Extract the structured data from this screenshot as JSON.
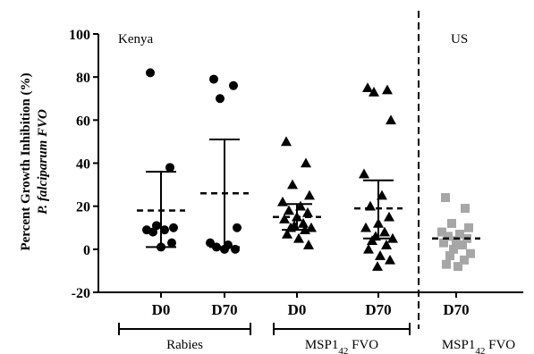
{
  "chart_data": {
    "type": "scatter",
    "ylabel_line1": "Percent Growth Inhibition (%)",
    "ylabel_line2": "P. falciparum  FVO",
    "ylim": [
      -20,
      100
    ],
    "yticks": [
      "100",
      "80",
      "60",
      "40",
      "20",
      "0",
      "-20"
    ],
    "regions": {
      "left": "Kenya",
      "right": "US"
    },
    "cohorts": [
      {
        "label": "Rabies"
      },
      {
        "label_main": "MSP1",
        "label_sub": "42",
        "label_tail": " FVO"
      },
      {
        "label_main": "MSP1",
        "label_sub": "42",
        "label_tail": " FVO"
      }
    ],
    "groups": [
      {
        "label": "D0",
        "cohort": 0,
        "region": "Kenya",
        "marker": "circle",
        "color": "#000000",
        "mean": 18,
        "sd_low": 1,
        "sd_high": 36,
        "points": [
          82,
          38,
          11,
          10,
          9,
          9,
          8,
          3,
          1
        ]
      },
      {
        "label": "D70",
        "cohort": 0,
        "region": "Kenya",
        "marker": "circle",
        "color": "#000000",
        "mean": 26,
        "sd_low": 1,
        "sd_high": 51,
        "points": [
          79,
          76,
          70,
          10,
          3,
          2,
          1,
          0,
          0
        ]
      },
      {
        "label": "D0",
        "cohort": 1,
        "region": "Kenya",
        "marker": "triangle",
        "color": "#000000",
        "mean": 15,
        "sd_low": 9,
        "sd_high": 21,
        "points": [
          50,
          40,
          30,
          25,
          22,
          20,
          18,
          17,
          15,
          14,
          12,
          11,
          10,
          10,
          9,
          7,
          5,
          2
        ]
      },
      {
        "label": "D70",
        "cohort": 1,
        "region": "Kenya",
        "marker": "triangle",
        "color": "#000000",
        "mean": 19,
        "sd_low": 5,
        "sd_high": 32,
        "points": [
          75,
          74,
          73,
          60,
          35,
          25,
          20,
          15,
          12,
          10,
          8,
          6,
          5,
          4,
          2,
          0,
          -3,
          -5,
          -8
        ]
      },
      {
        "label": "D70",
        "cohort": 2,
        "region": "US",
        "marker": "square",
        "color": "#a6a6a6",
        "mean": 5,
        "sd_low": 5,
        "sd_high": 5,
        "points": [
          24,
          19,
          12,
          10,
          8,
          7,
          6,
          5,
          4,
          3,
          2,
          0,
          -2,
          -3,
          -5,
          -7,
          -8
        ]
      }
    ]
  }
}
